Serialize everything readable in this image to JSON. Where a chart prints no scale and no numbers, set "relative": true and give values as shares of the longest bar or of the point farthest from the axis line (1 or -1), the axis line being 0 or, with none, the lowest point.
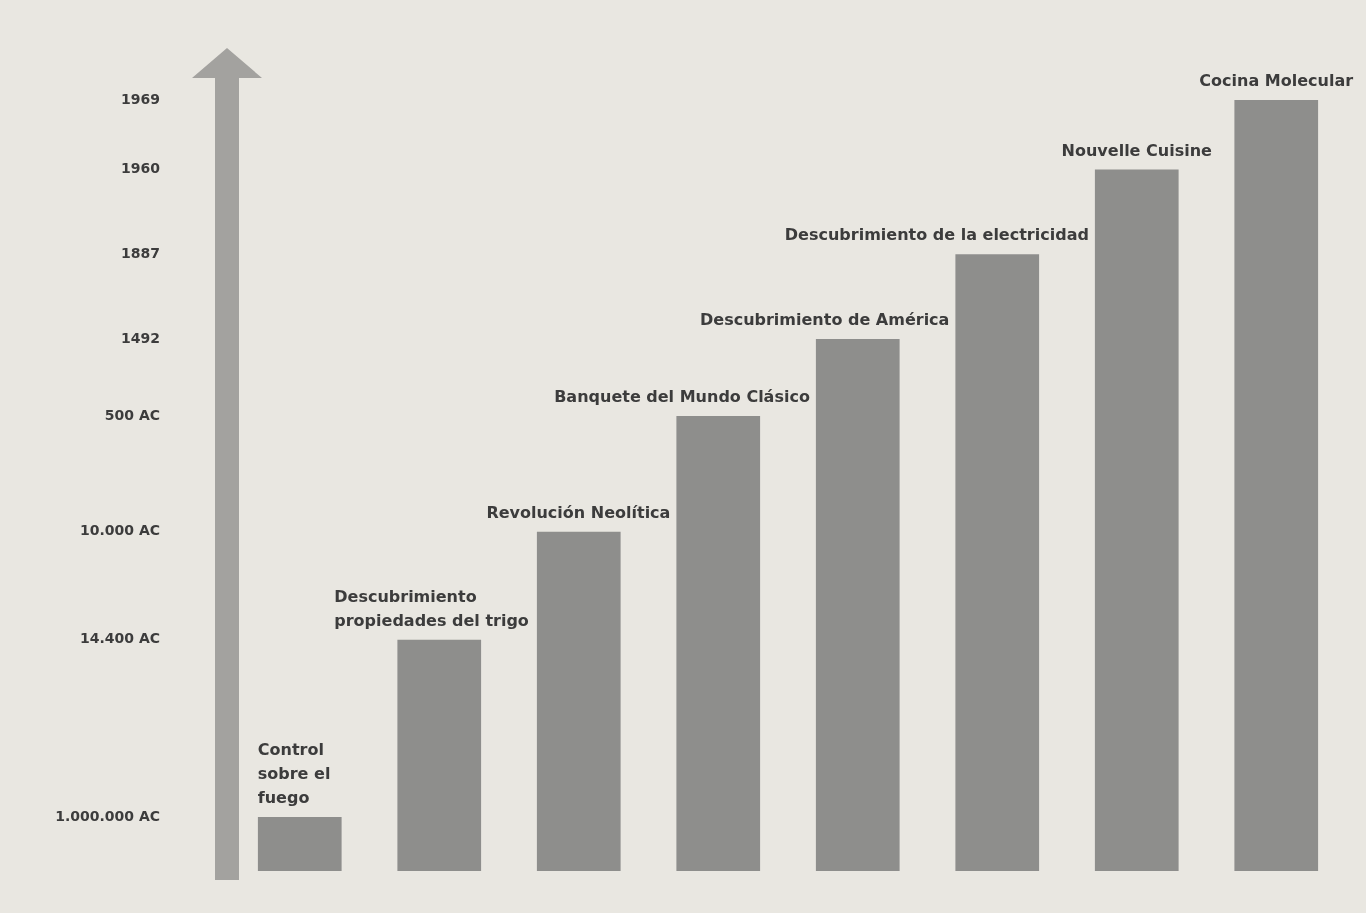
{
  "chart_data": {
    "type": "bar",
    "categories": [
      "Control sobre el fuego",
      "Descubrimiento propiedades del trigo",
      "Revolución Neolítica",
      "Banquete del Mundo Clásico",
      "Descubrimiento de América",
      "Descubrimiento de la electricidad",
      "Nouvelle Cuisine",
      "Cocina Molecular"
    ],
    "values": [
      0.07,
      0.3,
      0.44,
      0.59,
      0.69,
      0.8,
      0.91,
      1
    ],
    "color": "#8e8e8c",
    "relative": true,
    "annotations": [
      "1.000.000 AC",
      "14.400 AC",
      "10.000 AC",
      "500 AC",
      "1492",
      "1887",
      "1960",
      "1969"
    ]
  }
}
